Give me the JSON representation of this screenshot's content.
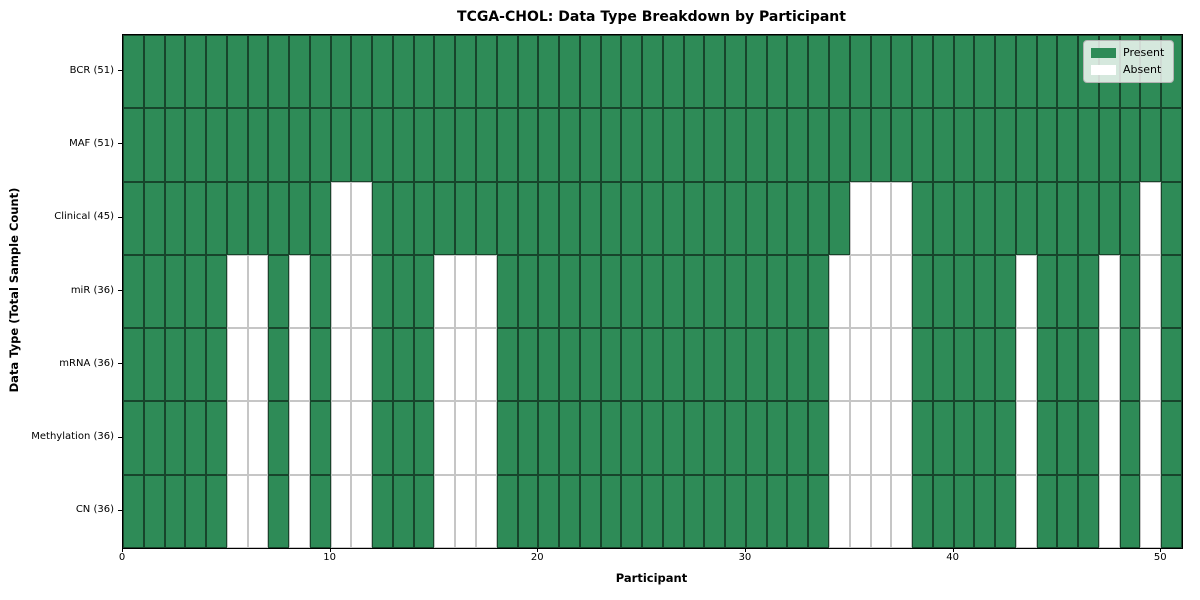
{
  "figure": {
    "background": "#ffffff"
  },
  "chart_data": {
    "type": "heatmap",
    "title": "TCGA-CHOL: Data Type Breakdown by Participant",
    "xlabel": "Participant",
    "ylabel": "Data Type (Total Sample Count)",
    "n_participants": 51,
    "x_range": [
      0,
      51
    ],
    "x_ticks": [
      0,
      10,
      20,
      30,
      40,
      50
    ],
    "grid": true,
    "legend_position": "upper right",
    "legend": [
      {
        "label": "Present",
        "color": "#2e8b57"
      },
      {
        "label": "Absent",
        "color": "#ffffff"
      }
    ],
    "colors": {
      "present": "#2e8b57",
      "absent": "#ffffff",
      "edge_on_present": "rgba(0,0,0,0.5)",
      "edge_on_absent": "#c6c6c6",
      "spine": "#000000"
    },
    "rows": [
      {
        "label": "BCR (51)",
        "data_type": "BCR",
        "present_count": 51,
        "absent_participants": []
      },
      {
        "label": "MAF (51)",
        "data_type": "MAF",
        "present_count": 51,
        "absent_participants": []
      },
      {
        "label": "Clinical (45)",
        "data_type": "Clinical",
        "present_count": 45,
        "absent_participants": [
          10,
          11,
          35,
          36,
          37,
          49
        ]
      },
      {
        "label": "miR (36)",
        "data_type": "miR",
        "present_count": 36,
        "absent_participants": [
          5,
          6,
          8,
          10,
          11,
          15,
          16,
          17,
          34,
          35,
          36,
          37,
          43,
          47,
          49
        ]
      },
      {
        "label": "mRNA (36)",
        "data_type": "mRNA",
        "present_count": 36,
        "absent_participants": [
          5,
          6,
          8,
          10,
          11,
          15,
          16,
          17,
          34,
          35,
          36,
          37,
          43,
          47,
          49
        ]
      },
      {
        "label": "Methylation (36)",
        "data_type": "Methylation",
        "present_count": 36,
        "absent_participants": [
          5,
          6,
          8,
          10,
          11,
          15,
          16,
          17,
          34,
          35,
          36,
          37,
          43,
          47,
          49
        ]
      },
      {
        "label": "CN (36)",
        "data_type": "CN",
        "present_count": 36,
        "absent_participants": [
          5,
          6,
          8,
          10,
          11,
          15,
          16,
          17,
          34,
          35,
          36,
          37,
          43,
          47,
          49
        ]
      }
    ]
  }
}
